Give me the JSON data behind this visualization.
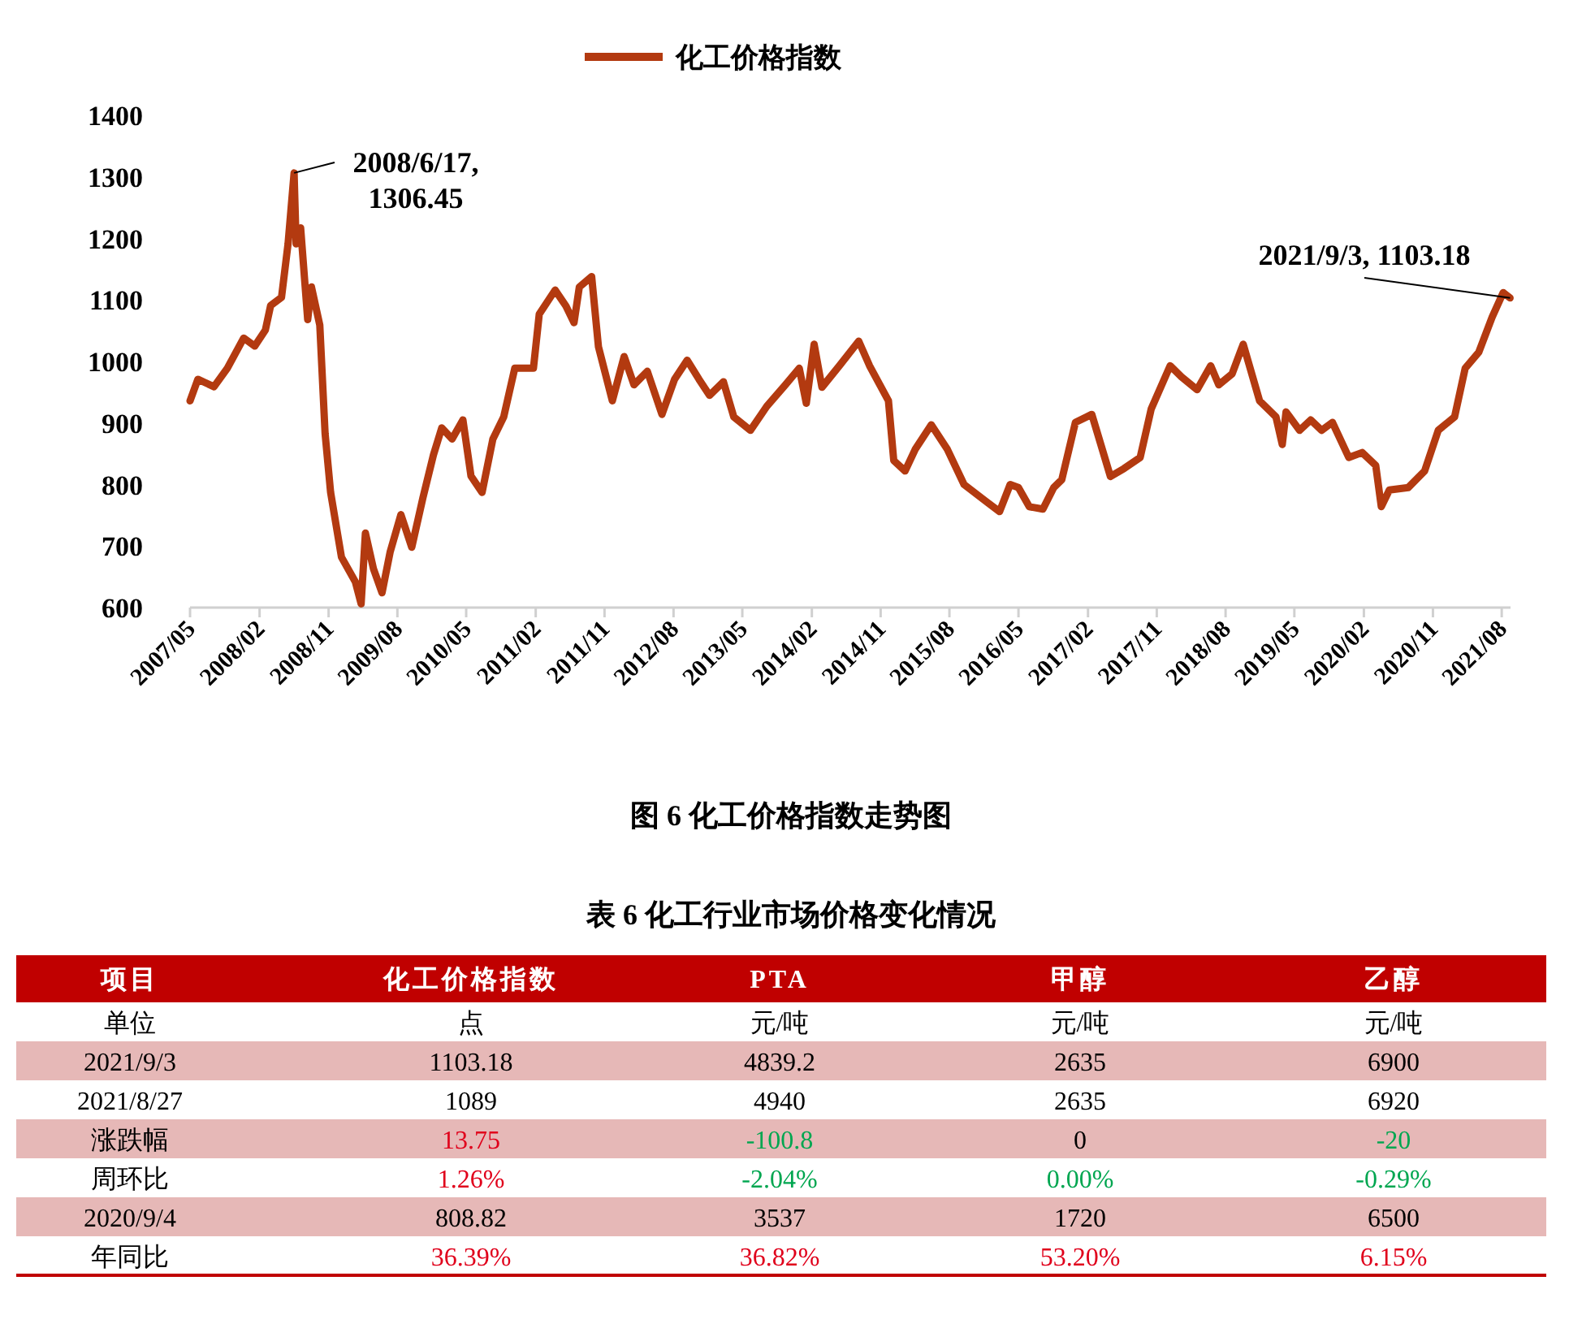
{
  "chart_data": [
    {
      "type": "line",
      "legend": "top",
      "grid": false,
      "marker": "none",
      "line_style": "solid",
      "x": [
        "2007-05-01",
        "2007-06-01",
        "2007-08-04",
        "2007-09-26",
        "2007-11-30",
        "2008-01-13",
        "2008-02-24",
        "2008-03-16",
        "2008-04-28",
        "2008-05-24",
        "2008-06-17",
        "2008-06-25",
        "2008-07-13",
        "2008-08-10",
        "2008-08-25",
        "2008-09-27",
        "2008-10-18",
        "2008-11-09",
        "2008-12-22",
        "2009-02-15",
        "2009-03-10",
        "2009-03-27",
        "2009-04-28",
        "2009-06-01",
        "2009-07-03",
        "2009-08-15",
        "2009-09-27",
        "2009-11-10",
        "2009-12-22",
        "2010-01-24",
        "2010-03-06",
        "2010-04-18",
        "2010-05-20",
        "2010-07-03",
        "2010-08-15",
        "2010-09-27",
        "2010-11-10",
        "2011-01-23",
        "2011-02-15",
        "2011-04-19",
        "2011-06-01",
        "2011-07-03",
        "2011-07-24",
        "2011-09-11",
        "2011-10-08",
        "2011-12-02",
        "2012-01-18",
        "2012-02-26",
        "2012-04-19",
        "2012-06-16",
        "2012-08-05",
        "2012-09-24",
        "2012-11-10",
        "2012-12-22",
        "2013-02-15",
        "2013-03-28",
        "2013-06-02",
        "2013-08-06",
        "2013-10-19",
        "2013-12-13",
        "2014-01-10",
        "2014-02-10",
        "2014-03-13",
        "2014-05-21",
        "2014-08-06",
        "2014-09-18",
        "2014-12-02",
        "2014-12-23",
        "2015-02-06",
        "2015-03-18",
        "2015-05-21",
        "2015-07-24",
        "2015-09-28",
        "2015-12-23",
        "2016-02-16",
        "2016-03-29",
        "2016-05-01",
        "2016-06-13",
        "2016-08-06",
        "2016-09-18",
        "2016-10-20",
        "2016-12-13",
        "2017-02-16",
        "2017-05-01",
        "2017-06-24",
        "2017-08-27",
        "2017-10-10",
        "2017-12-24",
        "2018-02-07",
        "2018-04-10",
        "2018-06-03",
        "2018-07-05",
        "2018-08-27",
        "2018-10-10",
        "2018-12-14",
        "2019-02-17",
        "2019-03-14",
        "2019-03-29",
        "2019-05-22",
        "2019-07-05",
        "2019-08-17",
        "2019-09-29",
        "2019-12-03",
        "2020-01-25",
        "2020-03-19",
        "2020-04-10",
        "2020-05-12",
        "2020-07-26",
        "2020-09-29",
        "2020-11-22",
        "2021-01-26",
        "2021-03-09",
        "2021-05-02",
        "2021-06-24",
        "2021-08-07",
        "2021-09-03"
      ],
      "series": [
        {
          "name": "化工价格指数",
          "color": "#b33a10",
          "values": [
            936,
            971,
            959,
            989,
            1038,
            1025,
            1051,
            1091,
            1104,
            1191,
            1306.45,
            1191,
            1217,
            1068,
            1121,
            1059,
            883,
            787,
            682,
            642,
            606,
            721,
            663,
            624,
            690,
            751,
            698,
            778,
            848,
            892,
            874,
            905,
            814,
            787,
            874,
            910,
            989,
            989,
            1077,
            1116,
            1090,
            1063,
            1121,
            1138,
            1024,
            936,
            1008,
            962,
            984,
            914,
            971,
            1002,
            971,
            945,
            967,
            910,
            888,
            927,
            962,
            989,
            932,
            1028,
            958,
            993,
            1033,
            993,
            936,
            839,
            822,
            857,
            897,
            857,
            800,
            773,
            756,
            800,
            795,
            764,
            760,
            795,
            808,
            901,
            914,
            813,
            826,
            844,
            923,
            993,
            975,
            954,
            993,
            962,
            980,
            1028,
            936,
            910,
            865,
            918,
            888,
            905,
            888,
            901,
            844,
            852,
            831,
            764,
            791,
            795,
            822,
            888,
            910,
            989,
            1015,
            1072,
            1112,
            1103.18
          ]
        }
      ],
      "xlim": [
        "2007-05-01",
        "2021-09-05"
      ],
      "xticks": [
        {
          "value": "2007-05",
          "label": "2007/05"
        },
        {
          "value": "2008-02",
          "label": "2008/02"
        },
        {
          "value": "2008-11",
          "label": "2008/11"
        },
        {
          "value": "2009-08",
          "label": "2009/08"
        },
        {
          "value": "2010-05",
          "label": "2010/05"
        },
        {
          "value": "2011-02",
          "label": "2011/02"
        },
        {
          "value": "2011-11",
          "label": "2011/11"
        },
        {
          "value": "2012-08",
          "label": "2012/08"
        },
        {
          "value": "2013-05",
          "label": "2013/05"
        },
        {
          "value": "2014-02",
          "label": "2014/02"
        },
        {
          "value": "2014-11",
          "label": "2014/11"
        },
        {
          "value": "2015-08",
          "label": "2015/08"
        },
        {
          "value": "2016-05",
          "label": "2016/05"
        },
        {
          "value": "2017-02",
          "label": "2017/02"
        },
        {
          "value": "2017-11",
          "label": "2017/11"
        },
        {
          "value": "2018-08",
          "label": "2018/08"
        },
        {
          "value": "2019-05",
          "label": "2019/05"
        },
        {
          "value": "2020-02",
          "label": "2020/02"
        },
        {
          "value": "2020-11",
          "label": "2020/11"
        },
        {
          "value": "2021-08",
          "label": "2021/08"
        }
      ],
      "ylim": [
        600,
        1400
      ],
      "yticks": [
        600,
        700,
        800,
        900,
        1000,
        1100,
        1200,
        1300,
        1400
      ],
      "annotations": [
        {
          "text": "2008/6/17,\n1306.45",
          "x": "2008-06-17",
          "y": 1306.45
        },
        {
          "text": "2021/9/3, 1103.18",
          "x": "2021-09-03",
          "y": 1103.18
        },
        "图 6 化工价格指数走势图"
      ]
    },
    {
      "type": "other",
      "title": "表 6 化工行业市场价格变化情况",
      "categories": [
        "项目",
        "化工价格指数",
        "PTA",
        "甲醇",
        "乙醇"
      ],
      "cell_labels": [
        [
          "单位",
          "点",
          "元/吨",
          "元/吨",
          "元/吨"
        ],
        [
          "2021/9/3",
          "1103.18",
          "4839.2",
          "2635",
          "6900"
        ],
        [
          "2021/8/27",
          "1089",
          "4940",
          "2635",
          "6920"
        ],
        [
          "涨跌幅",
          "13.75",
          "-100.8",
          "0",
          "-20"
        ],
        [
          "周环比",
          "1.26%",
          "-2.04%",
          "0.00%",
          "-0.29%"
        ],
        [
          "2020/9/4",
          "808.82",
          "3537",
          "1720",
          "6500"
        ],
        [
          "年同比",
          "36.39%",
          "36.82%",
          "53.20%",
          "6.15%"
        ]
      ],
      "colors": [
        [
          "#000000",
          "#000000",
          "#000000",
          "#000000",
          "#000000"
        ],
        [
          "#000000",
          "#000000",
          "#000000",
          "#000000",
          "#000000"
        ],
        [
          "#000000",
          "#000000",
          "#000000",
          "#000000",
          "#000000"
        ],
        [
          "#000000",
          "#e0001b",
          "#00a650",
          "#000000",
          "#00a650"
        ],
        [
          "#000000",
          "#e0001b",
          "#00a650",
          "#00a650",
          "#00a650"
        ],
        [
          "#000000",
          "#000000",
          "#000000",
          "#000000",
          "#000000"
        ],
        [
          "#000000",
          "#e0001b",
          "#e0001b",
          "#e0001b",
          "#e0001b"
        ]
      ]
    }
  ]
}
